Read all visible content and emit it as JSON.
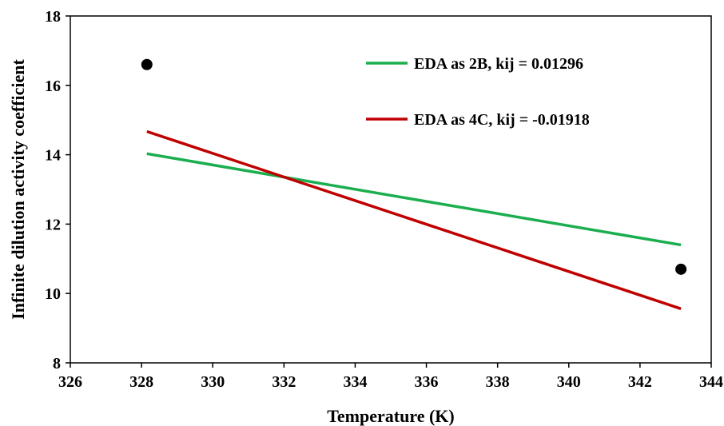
{
  "chart_data": {
    "type": "line",
    "title": "",
    "xlabel": "Temperature (K)",
    "ylabel": "Infinite dilution activity coefficient",
    "xlim": [
      326,
      344
    ],
    "ylim": [
      8,
      18
    ],
    "x_ticks": [
      "326",
      "328",
      "330",
      "332",
      "334",
      "336",
      "338",
      "340",
      "342",
      "344"
    ],
    "y_ticks": [
      "8",
      "10",
      "12",
      "14",
      "16",
      "18"
    ],
    "grid": false,
    "legend_position": "top-right",
    "series": [
      {
        "name": "EDA as 2B, kij = 0.01296",
        "kind": "line",
        "color": "#1aae4e",
        "points": [
          {
            "x": 328.15,
            "y": 14.03
          },
          {
            "x": 343.15,
            "y": 11.4
          }
        ]
      },
      {
        "name": "EDA as 4C, kij = -0.01918",
        "kind": "line",
        "color": "#c00000",
        "points": [
          {
            "x": 328.15,
            "y": 14.67
          },
          {
            "x": 343.15,
            "y": 9.56
          }
        ]
      },
      {
        "kind": "scatter",
        "color": "#000000",
        "points": [
          {
            "x": 328.15,
            "y": 16.6
          },
          {
            "x": 343.15,
            "y": 10.7
          }
        ]
      }
    ]
  }
}
